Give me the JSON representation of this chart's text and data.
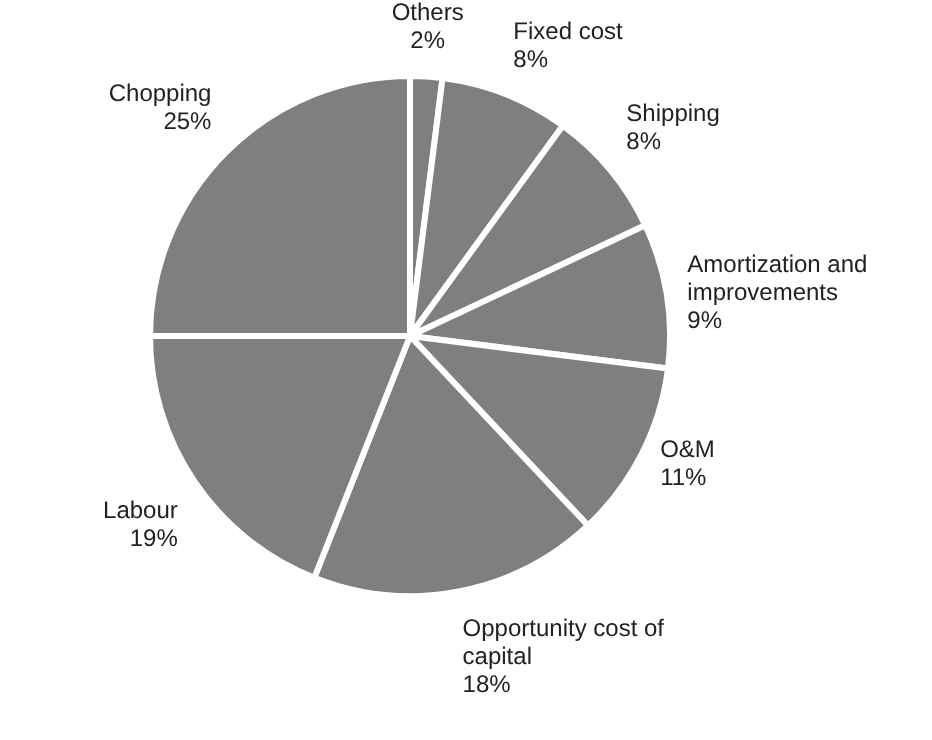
{
  "chart_data": {
    "type": "pie",
    "categories": [
      "Others",
      "Fixed cost",
      "Shipping",
      "Amortization and improvements",
      "O&M",
      "Opportunity cost of capital",
      "Labour",
      "Chopping"
    ],
    "values": [
      2,
      8,
      8,
      9,
      11,
      18,
      19,
      25
    ],
    "colors": [
      "#7f7f7f",
      "#7f7f7f",
      "#7f7f7f",
      "#7f7f7f",
      "#7f7f7f",
      "#7f7f7f",
      "#7f7f7f",
      "#7f7f7f"
    ],
    "value_labels": [
      "2%",
      "8%",
      "8%",
      "9%",
      "11%",
      "18%",
      "19%",
      "25%"
    ]
  }
}
